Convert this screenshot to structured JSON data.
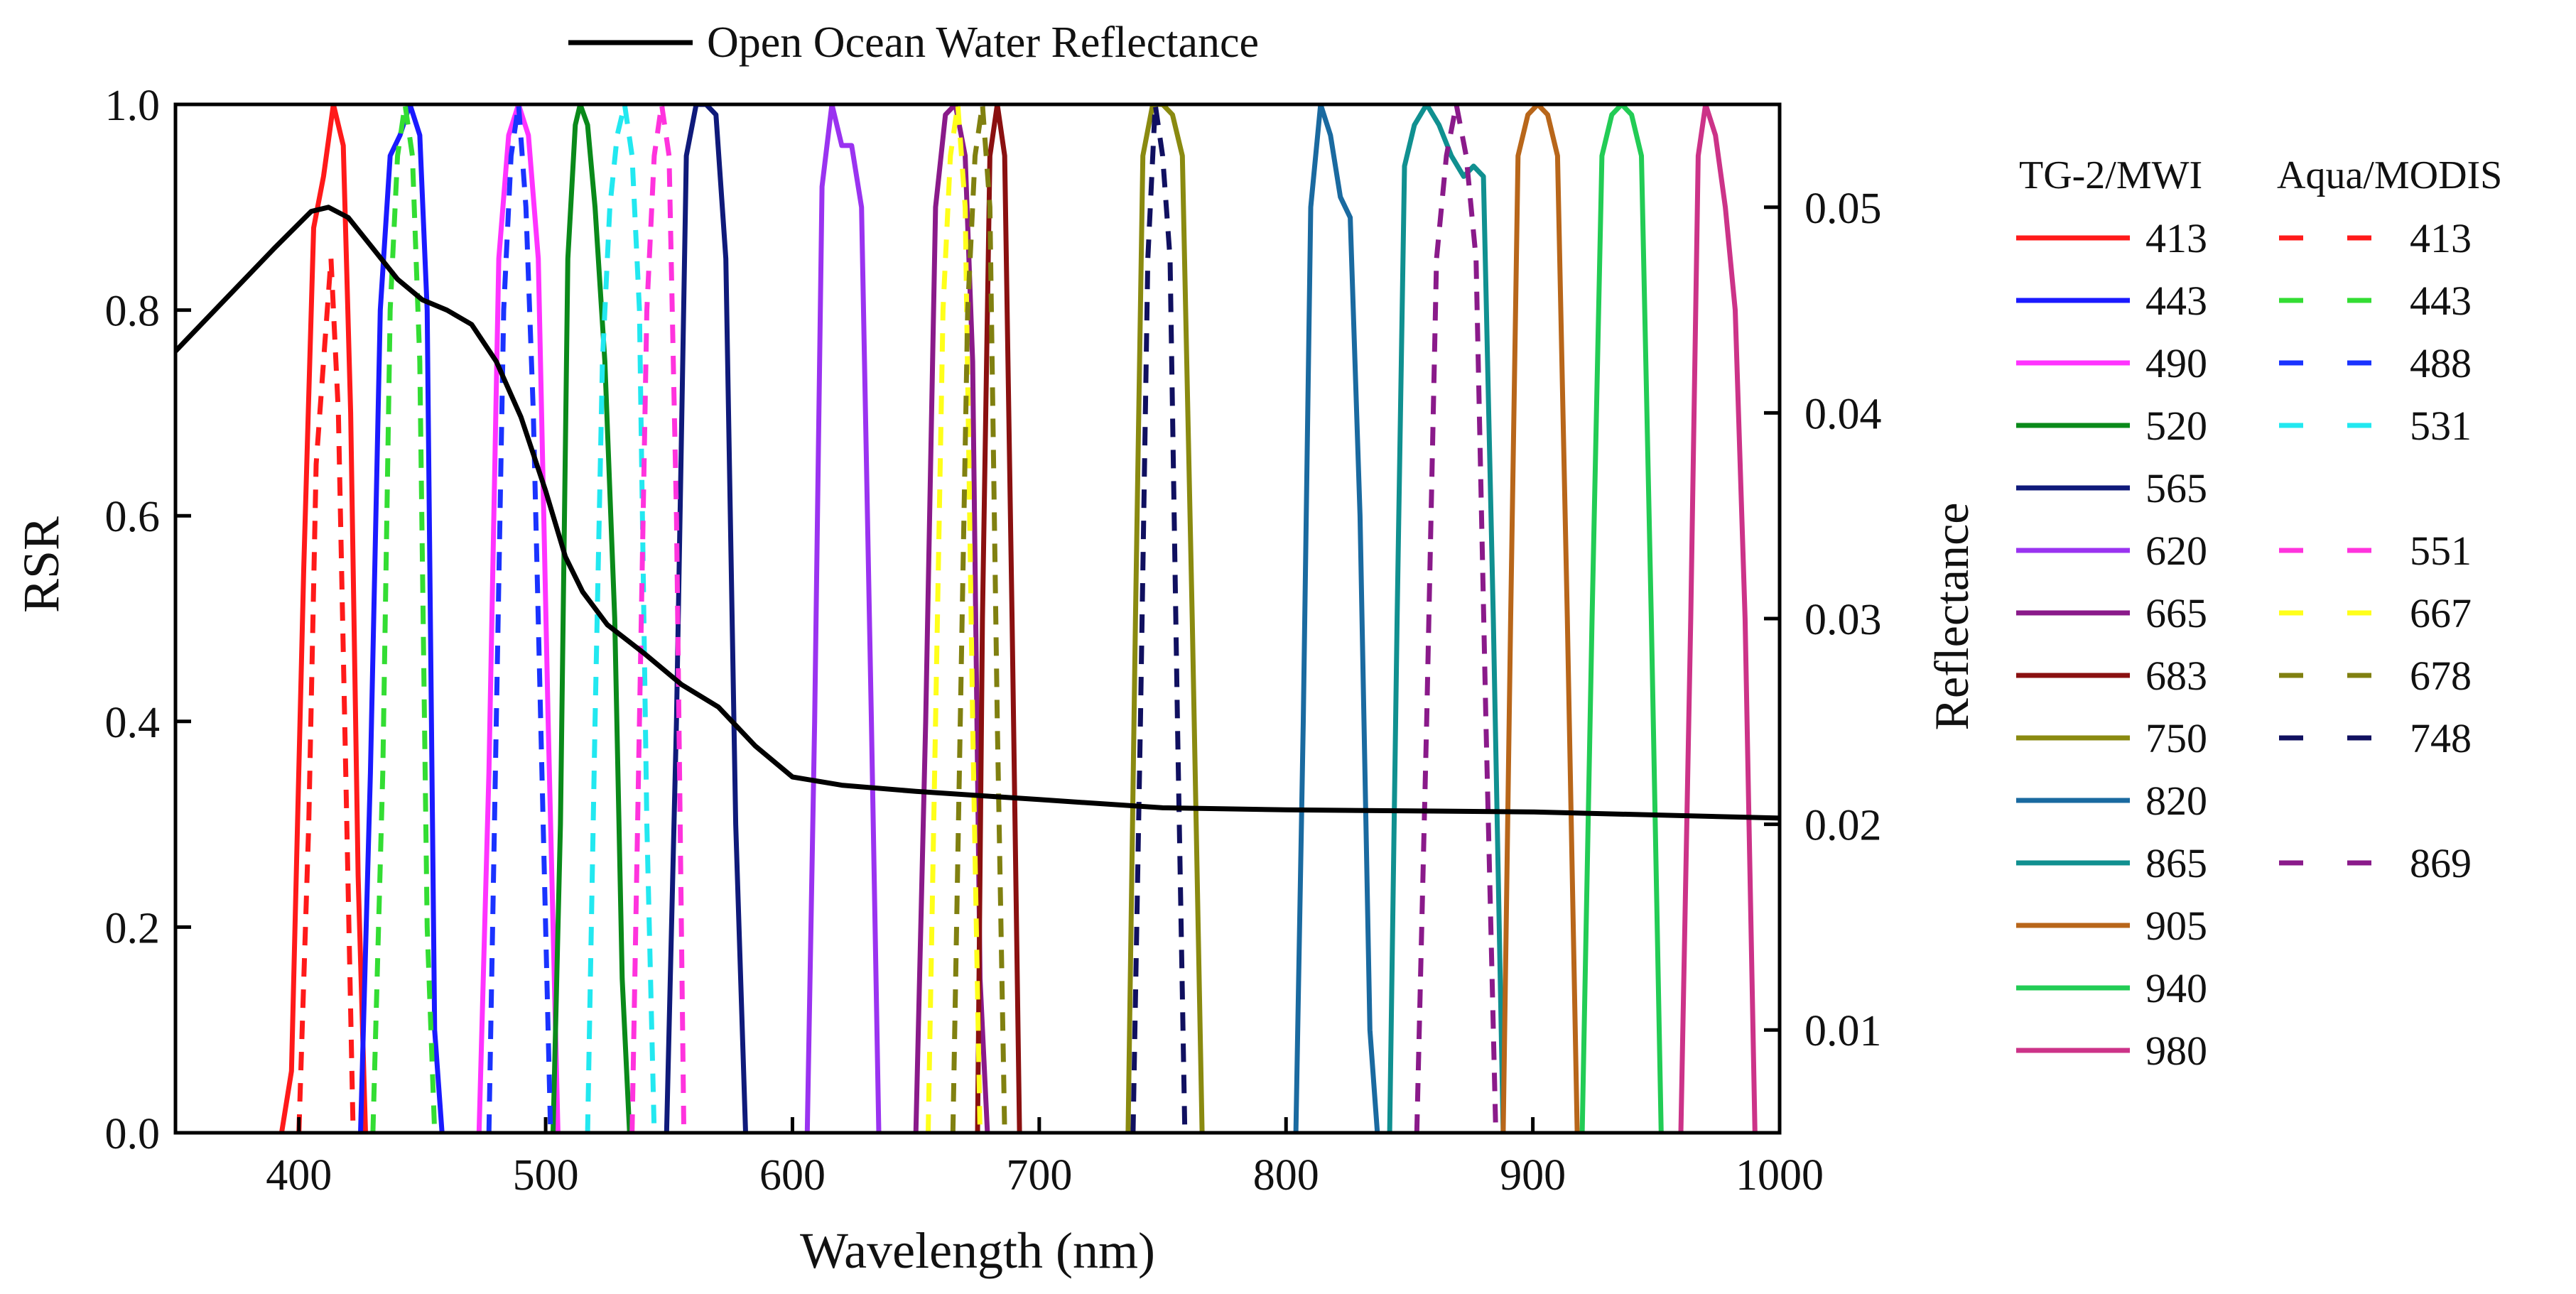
{
  "chart_data": {
    "type": "line",
    "top_legend_label": "Open Ocean Water Reflectance",
    "xlabel": "Wavelength (nm)",
    "ylabel": "RSR",
    "y2label": "Reflectance",
    "xlim": [
      350,
      1000
    ],
    "ylim": [
      0,
      1.0
    ],
    "y2lim": [
      0.005,
      0.055
    ],
    "xticks": [
      400,
      500,
      600,
      700,
      800,
      900,
      1000
    ],
    "yticks": [
      0.0,
      0.2,
      0.4,
      0.6,
      0.8,
      1.0
    ],
    "yticklabels": [
      "0.0",
      "0.2",
      "0.4",
      "0.6",
      "0.8",
      "1.0"
    ],
    "y2ticks": [
      0.01,
      0.02,
      0.03,
      0.04,
      0.05
    ],
    "y2ticklabels": [
      "0.01",
      "0.02",
      "0.03",
      "0.04",
      "0.05"
    ],
    "legend_titles": {
      "tg2": "TG-2/MWI",
      "modis": "Aqua/MODIS"
    },
    "legend_rows": [
      {
        "tg2": "413",
        "tg2_color": "#ff1a1a",
        "modis": "413",
        "modis_color": "#ff1a1a"
      },
      {
        "tg2": "443",
        "tg2_color": "#1a1aff",
        "modis": "443",
        "modis_color": "#33dd33"
      },
      {
        "tg2": "490",
        "tg2_color": "#ff33ff",
        "modis": "488",
        "modis_color": "#1a33ff"
      },
      {
        "tg2": "520",
        "tg2_color": "#0a8a1a",
        "modis": "531",
        "modis_color": "#22e8f0"
      },
      {
        "tg2": "565",
        "tg2_color": "#0f1a7a",
        "modis": "",
        "modis_color": ""
      },
      {
        "tg2": "620",
        "tg2_color": "#9a33f0",
        "modis": "551",
        "modis_color": "#ff33dd"
      },
      {
        "tg2": "665",
        "tg2_color": "#8a1a8a",
        "modis": "667",
        "modis_color": "#ffff1a"
      },
      {
        "tg2": "683",
        "tg2_color": "#8a1010",
        "modis": "678",
        "modis_color": "#808010"
      },
      {
        "tg2": "750",
        "tg2_color": "#8a8a10",
        "modis": "748",
        "modis_color": "#101060"
      },
      {
        "tg2": "820",
        "tg2_color": "#1a6aa0",
        "modis": "",
        "modis_color": ""
      },
      {
        "tg2": "865",
        "tg2_color": "#109090",
        "modis": "869",
        "modis_color": "#8a1a8a"
      },
      {
        "tg2": "905",
        "tg2_color": "#b8661a",
        "modis": "",
        "modis_color": ""
      },
      {
        "tg2": "940",
        "tg2_color": "#22cc55",
        "modis": "",
        "modis_color": ""
      },
      {
        "tg2": "980",
        "tg2_color": "#cc3388",
        "modis": "",
        "modis_color": ""
      }
    ],
    "series": [
      {
        "name": "TG-2/MWI 413",
        "color": "#ff1a1a",
        "dash": false,
        "values": [
          [
            393,
            0
          ],
          [
            397,
            0.06
          ],
          [
            402,
            0.55
          ],
          [
            406,
            0.88
          ],
          [
            410,
            0.93
          ],
          [
            414,
            1.0
          ],
          [
            418,
            0.96
          ],
          [
            421,
            0.7
          ],
          [
            424,
            0.25
          ],
          [
            427,
            0
          ]
        ]
      },
      {
        "name": "TG-2/MWI 443",
        "color": "#1a1aff",
        "dash": false,
        "values": [
          [
            425,
            0
          ],
          [
            429,
            0.35
          ],
          [
            433,
            0.8
          ],
          [
            437,
            0.95
          ],
          [
            441,
            0.97
          ],
          [
            445,
            1.0
          ],
          [
            449,
            0.97
          ],
          [
            452,
            0.8
          ],
          [
            455,
            0.1
          ],
          [
            458,
            0
          ]
        ]
      },
      {
        "name": "TG-2/MWI 490",
        "color": "#ff33ff",
        "dash": false,
        "values": [
          [
            473,
            0
          ],
          [
            477,
            0.35
          ],
          [
            481,
            0.85
          ],
          [
            485,
            0.97
          ],
          [
            489,
            1.0
          ],
          [
            493,
            0.97
          ],
          [
            497,
            0.85
          ],
          [
            501,
            0.4
          ],
          [
            505,
            0
          ]
        ]
      },
      {
        "name": "TG-2/MWI 520",
        "color": "#0a8a1a",
        "dash": false,
        "values": [
          [
            503,
            0
          ],
          [
            506,
            0.3
          ],
          [
            509,
            0.85
          ],
          [
            512,
            0.98
          ],
          [
            514,
            1.0
          ],
          [
            517,
            0.98
          ],
          [
            520,
            0.9
          ],
          [
            524,
            0.75
          ],
          [
            528,
            0.5
          ],
          [
            531,
            0.15
          ],
          [
            534,
            0
          ]
        ]
      },
      {
        "name": "TG-2/MWI 565",
        "color": "#0f1a7a",
        "dash": false,
        "values": [
          [
            549,
            0
          ],
          [
            553,
            0.4
          ],
          [
            557,
            0.95
          ],
          [
            561,
            1.0
          ],
          [
            565,
            1.0
          ],
          [
            569,
            0.99
          ],
          [
            573,
            0.85
          ],
          [
            577,
            0.3
          ],
          [
            581,
            0
          ]
        ]
      },
      {
        "name": "TG-2/MWI 620",
        "color": "#9a33f0",
        "dash": false,
        "values": [
          [
            606,
            0
          ],
          [
            609,
            0.4
          ],
          [
            612,
            0.92
          ],
          [
            616,
            1.0
          ],
          [
            620,
            0.96
          ],
          [
            624,
            0.96
          ],
          [
            628,
            0.9
          ],
          [
            632,
            0.4
          ],
          [
            635,
            0
          ]
        ]
      },
      {
        "name": "TG-2/MWI 665",
        "color": "#8a1a8a",
        "dash": false,
        "values": [
          [
            650,
            0
          ],
          [
            654,
            0.4
          ],
          [
            658,
            0.9
          ],
          [
            662,
            0.99
          ],
          [
            666,
            1.0
          ],
          [
            670,
            0.95
          ],
          [
            673,
            0.75
          ],
          [
            676,
            0.15
          ],
          [
            679,
            0
          ]
        ]
      },
      {
        "name": "TG-2/MWI 683",
        "color": "#8a1010",
        "dash": false,
        "values": [
          [
            675,
            0
          ],
          [
            677,
            0.5
          ],
          [
            680,
            0.95
          ],
          [
            683,
            1.0
          ],
          [
            686,
            0.95
          ],
          [
            689,
            0.5
          ],
          [
            692,
            0
          ]
        ]
      },
      {
        "name": "TG-2/MWI 750",
        "color": "#8a8a10",
        "dash": false,
        "values": [
          [
            736,
            0
          ],
          [
            739,
            0.5
          ],
          [
            742,
            0.95
          ],
          [
            746,
            1.0
          ],
          [
            750,
            1.0
          ],
          [
            754,
            0.99
          ],
          [
            758,
            0.95
          ],
          [
            762,
            0.5
          ],
          [
            766,
            0
          ]
        ]
      },
      {
        "name": "TG-2/MWI 820",
        "color": "#1a6aa0",
        "dash": false,
        "values": [
          [
            804,
            0
          ],
          [
            807,
            0.4
          ],
          [
            810,
            0.9
          ],
          [
            814,
            1.0
          ],
          [
            818,
            0.97
          ],
          [
            822,
            0.91
          ],
          [
            826,
            0.89
          ],
          [
            830,
            0.6
          ],
          [
            834,
            0.1
          ],
          [
            837,
            0
          ]
        ]
      },
      {
        "name": "TG-2/MWI 865",
        "color": "#109090",
        "dash": false,
        "values": [
          [
            842,
            0
          ],
          [
            845,
            0.5
          ],
          [
            848,
            0.94
          ],
          [
            852,
            0.98
          ],
          [
            857,
            1.0
          ],
          [
            862,
            0.98
          ],
          [
            867,
            0.95
          ],
          [
            872,
            0.93
          ],
          [
            876,
            0.94
          ],
          [
            880,
            0.93
          ],
          [
            884,
            0.5
          ],
          [
            888,
            0
          ]
        ]
      },
      {
        "name": "TG-2/MWI 905",
        "color": "#b8661a",
        "dash": false,
        "values": [
          [
            888,
            0
          ],
          [
            891,
            0.5
          ],
          [
            894,
            0.95
          ],
          [
            898,
            0.99
          ],
          [
            902,
            1.0
          ],
          [
            906,
            0.99
          ],
          [
            910,
            0.95
          ],
          [
            914,
            0.5
          ],
          [
            918,
            0
          ]
        ]
      },
      {
        "name": "TG-2/MWI 940",
        "color": "#22cc55",
        "dash": false,
        "values": [
          [
            920,
            0
          ],
          [
            924,
            0.5
          ],
          [
            928,
            0.95
          ],
          [
            932,
            0.99
          ],
          [
            936,
            1.0
          ],
          [
            940,
            0.99
          ],
          [
            944,
            0.95
          ],
          [
            948,
            0.5
          ],
          [
            952,
            0
          ]
        ]
      },
      {
        "name": "TG-2/MWI 980",
        "color": "#cc3388",
        "dash": false,
        "values": [
          [
            960,
            0
          ],
          [
            964,
            0.5
          ],
          [
            967,
            0.95
          ],
          [
            970,
            1.0
          ],
          [
            974,
            0.97
          ],
          [
            978,
            0.9
          ],
          [
            982,
            0.8
          ],
          [
            986,
            0.5
          ],
          [
            990,
            0
          ]
        ]
      },
      {
        "name": "Aqua/MODIS 413",
        "color": "#ff1a1a",
        "dash": true,
        "values": [
          [
            400,
            0
          ],
          [
            404,
            0.3
          ],
          [
            407,
            0.65
          ],
          [
            410,
            0.75
          ],
          [
            413,
            0.85
          ],
          [
            416,
            0.7
          ],
          [
            419,
            0.35
          ],
          [
            422,
            0
          ]
        ]
      },
      {
        "name": "Aqua/MODIS 443",
        "color": "#33dd33",
        "dash": true,
        "values": [
          [
            430,
            0
          ],
          [
            434,
            0.35
          ],
          [
            437,
            0.8
          ],
          [
            440,
            0.95
          ],
          [
            443,
            1.0
          ],
          [
            446,
            0.95
          ],
          [
            449,
            0.75
          ],
          [
            452,
            0.2
          ],
          [
            455,
            0
          ]
        ]
      },
      {
        "name": "Aqua/MODIS 488",
        "color": "#1a33ff",
        "dash": true,
        "values": [
          [
            477,
            0
          ],
          [
            480,
            0.4
          ],
          [
            483,
            0.8
          ],
          [
            486,
            0.95
          ],
          [
            489,
            1.0
          ],
          [
            492,
            0.9
          ],
          [
            495,
            0.7
          ],
          [
            498,
            0.4
          ],
          [
            502,
            0
          ]
        ]
      },
      {
        "name": "Aqua/MODIS 531",
        "color": "#22e8f0",
        "dash": true,
        "values": [
          [
            517,
            0
          ],
          [
            520,
            0.4
          ],
          [
            523,
            0.75
          ],
          [
            526,
            0.9
          ],
          [
            529,
            0.97
          ],
          [
            532,
            1.0
          ],
          [
            535,
            0.95
          ],
          [
            538,
            0.8
          ],
          [
            541,
            0.3
          ],
          [
            544,
            0
          ]
        ]
      },
      {
        "name": "Aqua/MODIS 551",
        "color": "#ff33dd",
        "dash": true,
        "values": [
          [
            535,
            0
          ],
          [
            538,
            0.4
          ],
          [
            541,
            0.8
          ],
          [
            544,
            0.95
          ],
          [
            547,
            1.0
          ],
          [
            550,
            0.95
          ],
          [
            553,
            0.6
          ],
          [
            556,
            0
          ]
        ]
      },
      {
        "name": "Aqua/MODIS 667",
        "color": "#ffff1a",
        "dash": true,
        "values": [
          [
            655,
            0
          ],
          [
            658,
            0.4
          ],
          [
            661,
            0.8
          ],
          [
            664,
            0.95
          ],
          [
            667,
            1.0
          ],
          [
            670,
            0.9
          ],
          [
            673,
            0.4
          ],
          [
            676,
            0
          ]
        ]
      },
      {
        "name": "Aqua/MODIS 678",
        "color": "#808010",
        "dash": true,
        "values": [
          [
            665,
            0
          ],
          [
            668,
            0.4
          ],
          [
            671,
            0.8
          ],
          [
            674,
            0.95
          ],
          [
            677,
            1.0
          ],
          [
            680,
            0.9
          ],
          [
            683,
            0.4
          ],
          [
            686,
            0
          ]
        ]
      },
      {
        "name": "Aqua/MODIS 748",
        "color": "#101060",
        "dash": true,
        "values": [
          [
            738,
            0
          ],
          [
            741,
            0.4
          ],
          [
            744,
            0.85
          ],
          [
            747,
            1.0
          ],
          [
            750,
            0.95
          ],
          [
            753,
            0.85
          ],
          [
            756,
            0.4
          ],
          [
            759,
            0
          ]
        ]
      },
      {
        "name": "Aqua/MODIS 869",
        "color": "#8a1a8a",
        "dash": true,
        "values": [
          [
            853,
            0
          ],
          [
            857,
            0.4
          ],
          [
            861,
            0.85
          ],
          [
            865,
            0.95
          ],
          [
            869,
            1.0
          ],
          [
            873,
            0.95
          ],
          [
            877,
            0.85
          ],
          [
            881,
            0.4
          ],
          [
            885,
            0
          ]
        ]
      }
    ],
    "reflectance": {
      "name": "Open Ocean Water Reflectance",
      "color": "#000000",
      "values": [
        [
          350,
          0.043
        ],
        [
          370,
          0.0455
        ],
        [
          390,
          0.048
        ],
        [
          405,
          0.0498
        ],
        [
          412,
          0.05
        ],
        [
          420,
          0.0495
        ],
        [
          430,
          0.048
        ],
        [
          440,
          0.0465
        ],
        [
          450,
          0.0455
        ],
        [
          460,
          0.045
        ],
        [
          470,
          0.0443
        ],
        [
          480,
          0.0425
        ],
        [
          490,
          0.0398
        ],
        [
          500,
          0.0362
        ],
        [
          508,
          0.033
        ],
        [
          515,
          0.0313
        ],
        [
          525,
          0.0297
        ],
        [
          540,
          0.0283
        ],
        [
          555,
          0.0268
        ],
        [
          570,
          0.0257
        ],
        [
          585,
          0.0238
        ],
        [
          600,
          0.0223
        ],
        [
          620,
          0.0219
        ],
        [
          650,
          0.0216
        ],
        [
          700,
          0.0212
        ],
        [
          750,
          0.0208
        ],
        [
          800,
          0.0207
        ],
        [
          900,
          0.0206
        ],
        [
          1000,
          0.0203
        ]
      ]
    }
  }
}
